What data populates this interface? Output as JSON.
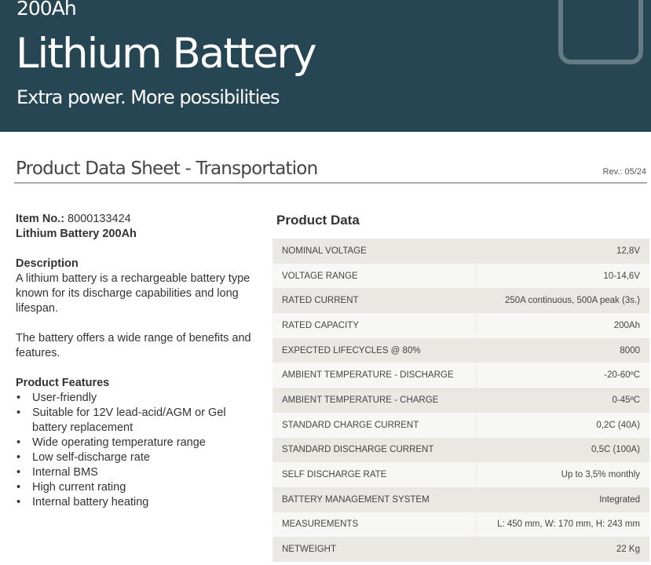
{
  "header": {
    "capacity": "200Ah",
    "title": "Lithium Battery",
    "tagline": "Extra power. More possibilities"
  },
  "sheet": {
    "title": "Product Data Sheet - Transportation",
    "revision": "Rev.: 05/24"
  },
  "item": {
    "label": "Item No.:",
    "number": " 8000133424",
    "name": "Lithium Battery 200Ah"
  },
  "description": {
    "heading": "Description",
    "p1": "A lithium battery is a rechargeable battery type known for its discharge capabilities and long lifespan.",
    "p2": "The battery offers a wide range of benefits and features."
  },
  "features": {
    "heading": "Product Features",
    "items": [
      "User-friendly",
      "Suitable for 12V lead-acid/AGM or Gel battery replacement",
      "Wide operating temperature range",
      "Low self-discharge rate",
      "Internal BMS",
      "High current rating",
      "Internal battery heating"
    ]
  },
  "product_data": {
    "heading": "Product Data",
    "rows": [
      [
        "NOMINAL VOLTAGE",
        "12,8V"
      ],
      [
        "VOLTAGE RANGE",
        "10-14,6V"
      ],
      [
        "RATED CURRENT",
        "250A continuous, 500A peak (3s.)"
      ],
      [
        "RATED CAPACITY",
        "200Ah"
      ],
      [
        "EXPECTED LIFECYCLES @ 80%",
        "8000"
      ],
      [
        "AMBIENT TEMPERATURE - DISCHARGE",
        "-20-60ºC"
      ],
      [
        "AMBIENT TEMPERATURE - CHARGE",
        "0-45ºC"
      ],
      [
        "STANDARD CHARGE CURRENT",
        "0,2C (40A)"
      ],
      [
        "STANDARD DISCHARGE CURRENT",
        "0,5C (100A)"
      ],
      [
        "SELF DISCHARGE RATE",
        "Up to 3,5% monthly"
      ],
      [
        "BATTERY MANAGEMENT SYSTEM",
        "Integrated"
      ],
      [
        "MEASUREMENTS",
        "L: 450 mm, W: 170 mm, H: 243 mm"
      ],
      [
        "NETWEIGHT",
        "22 Kg"
      ]
    ]
  },
  "colors": {
    "header_bg": "#264653",
    "row_dark": "#e9e8e3",
    "row_light": "#f7f7f5"
  }
}
